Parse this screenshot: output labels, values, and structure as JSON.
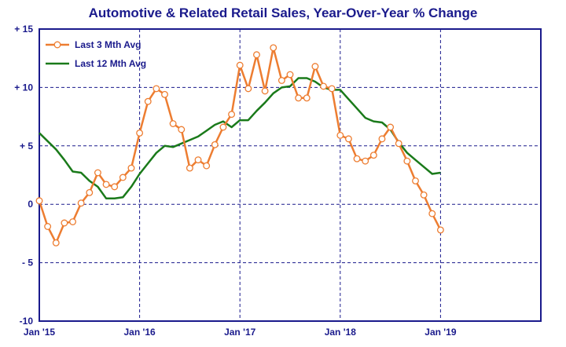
{
  "chart_data": {
    "type": "line",
    "title": "Automotive & Related Retail Sales, Year-Over-Year % Change",
    "xlabel": "",
    "ylabel": "",
    "ylim": [
      -10,
      15
    ],
    "y_ticks": [
      15,
      10,
      5,
      0,
      -5,
      -10
    ],
    "y_tick_labels": [
      "+ 15",
      "+ 10",
      "+ 5",
      "0",
      "- 5",
      "-10"
    ],
    "x_ticks": [
      "2015-01",
      "2016-01",
      "2017-01",
      "2018-01",
      "2019-01"
    ],
    "x_tick_labels": [
      "Jan '15",
      "Jan '16",
      "Jan '17",
      "Jan '18",
      "Jan '19"
    ],
    "xlim": [
      "2015-01",
      "2020-01"
    ],
    "grid": true,
    "legend_position": "top-left",
    "colors": {
      "title": "#1a1a8c",
      "axis": "#1a1a8c",
      "grid": "#1a1a8c"
    },
    "series": [
      {
        "name": "Last 3 Mth Avg",
        "color": "#ed7d31",
        "marker": "circle",
        "x": [
          "2015-01",
          "2015-02",
          "2015-03",
          "2015-04",
          "2015-05",
          "2015-06",
          "2015-07",
          "2015-08",
          "2015-09",
          "2015-10",
          "2015-11",
          "2015-12",
          "2016-01",
          "2016-02",
          "2016-03",
          "2016-04",
          "2016-05",
          "2016-06",
          "2016-07",
          "2016-08",
          "2016-09",
          "2016-10",
          "2016-11",
          "2016-12",
          "2017-01",
          "2017-02",
          "2017-03",
          "2017-04",
          "2017-05",
          "2017-06",
          "2017-07",
          "2017-08",
          "2017-09",
          "2017-10",
          "2017-11",
          "2017-12",
          "2018-01",
          "2018-02",
          "2018-03",
          "2018-04",
          "2018-05",
          "2018-06",
          "2018-07",
          "2018-08",
          "2018-09",
          "2018-10",
          "2018-11",
          "2018-12",
          "2019-01"
        ],
        "values": [
          0.3,
          -1.9,
          -3.3,
          -1.6,
          -1.5,
          0.1,
          1.0,
          2.7,
          1.7,
          1.5,
          2.3,
          3.1,
          6.1,
          8.8,
          9.9,
          9.4,
          6.9,
          6.4,
          3.1,
          3.8,
          3.3,
          5.1,
          6.6,
          7.7,
          11.9,
          9.9,
          12.8,
          9.7,
          13.4,
          10.6,
          11.1,
          9.1,
          9.1,
          11.8,
          10.1,
          9.9,
          5.9,
          5.6,
          3.9,
          3.7,
          4.2,
          5.6,
          6.6,
          5.2,
          3.7,
          2.0,
          0.8,
          -0.8,
          -2.2
        ]
      },
      {
        "name": "Last 12 Mth Avg",
        "color": "#1a7a1a",
        "marker": "none",
        "x": [
          "2015-01",
          "2015-02",
          "2015-03",
          "2015-04",
          "2015-05",
          "2015-06",
          "2015-07",
          "2015-08",
          "2015-09",
          "2015-10",
          "2015-11",
          "2015-12",
          "2016-01",
          "2016-02",
          "2016-03",
          "2016-04",
          "2016-05",
          "2016-06",
          "2016-07",
          "2016-08",
          "2016-09",
          "2016-10",
          "2016-11",
          "2016-12",
          "2017-01",
          "2017-02",
          "2017-03",
          "2017-04",
          "2017-05",
          "2017-06",
          "2017-07",
          "2017-08",
          "2017-09",
          "2017-10",
          "2017-11",
          "2017-12",
          "2018-01",
          "2018-02",
          "2018-03",
          "2018-04",
          "2018-05",
          "2018-06",
          "2018-07",
          "2018-08",
          "2018-09",
          "2018-10",
          "2018-11",
          "2018-12",
          "2019-01"
        ],
        "values": [
          6.1,
          5.4,
          4.7,
          3.8,
          2.8,
          2.7,
          2.0,
          1.5,
          0.5,
          0.5,
          0.6,
          1.5,
          2.6,
          3.5,
          4.4,
          5.0,
          4.9,
          5.2,
          5.5,
          5.8,
          6.3,
          6.8,
          7.1,
          6.6,
          7.2,
          7.2,
          8.0,
          8.7,
          9.5,
          10.0,
          10.1,
          10.8,
          10.8,
          10.5,
          10.0,
          9.8,
          9.8,
          9.0,
          8.2,
          7.4,
          7.1,
          7.0,
          6.4,
          5.3,
          4.4,
          3.8,
          3.2,
          2.6,
          2.7
        ]
      }
    ]
  }
}
